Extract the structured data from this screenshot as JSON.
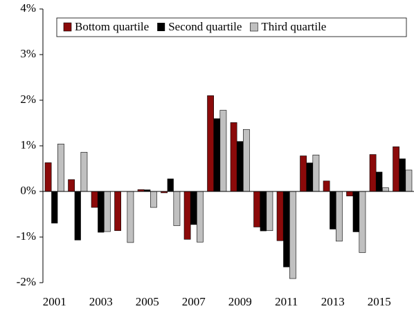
{
  "chart_data": {
    "type": "bar",
    "categories": [
      "2001",
      null,
      "2003",
      null,
      "2005",
      null,
      "2007",
      null,
      "2009",
      null,
      "2011",
      null,
      "2013",
      null,
      "2015",
      null
    ],
    "series": [
      {
        "name": "Bottom quartile",
        "color": "#8b0a0a",
        "values": [
          0.63,
          0.26,
          -0.35,
          -0.86,
          0.04,
          -0.03,
          -1.05,
          2.1,
          1.51,
          -0.78,
          -1.08,
          0.78,
          0.23,
          -0.1,
          0.81,
          0.98
        ]
      },
      {
        "name": "Second quartile",
        "color": "#000000",
        "values": [
          -0.7,
          -1.07,
          -0.9,
          0.0,
          0.04,
          0.28,
          -0.73,
          1.6,
          1.1,
          -0.87,
          -1.66,
          0.63,
          -0.83,
          -0.89,
          0.43,
          0.72
        ]
      },
      {
        "name": "Third quartile",
        "color": "#c0c0c0",
        "values": [
          1.04,
          0.86,
          -0.88,
          -1.12,
          -0.35,
          -0.75,
          -1.11,
          1.78,
          1.36,
          -0.86,
          -1.91,
          0.8,
          -1.09,
          -1.34,
          0.08,
          0.47
        ]
      }
    ],
    "ylim": [
      -2,
      4
    ],
    "yticks": [
      {
        "value": -2,
        "label": "-2%"
      },
      {
        "value": -1,
        "label": "-1%"
      },
      {
        "value": 0,
        "label": "0%"
      },
      {
        "value": 1,
        "label": "1%"
      },
      {
        "value": 2,
        "label": "2%"
      },
      {
        "value": 3,
        "label": "3%"
      },
      {
        "value": 4,
        "label": "4%"
      }
    ],
    "legend": "upper right"
  }
}
